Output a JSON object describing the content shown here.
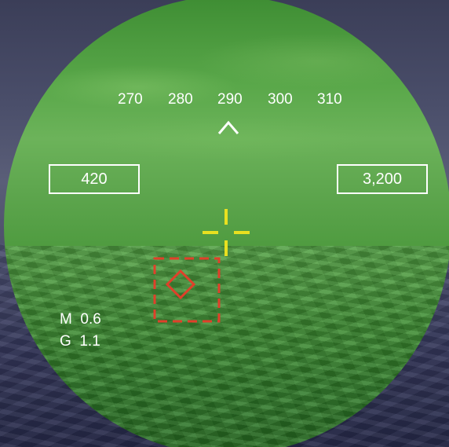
{
  "heading_scale": {
    "ticks": [
      "270",
      "280",
      "290",
      "300",
      "310"
    ],
    "caret_icon": "chevron-up-icon"
  },
  "airspeed": {
    "value": "420"
  },
  "altitude": {
    "value": "3,200"
  },
  "flight_data": {
    "mach_label": "M",
    "mach_value": "0.6",
    "g_label": "G",
    "g_value": "1.1"
  },
  "colors": {
    "hud_text": "#ffffff",
    "boresight_cross": "#e8e020",
    "target_marker": "#e0402a",
    "night_vision_green": "#5aa84a"
  },
  "icons": {
    "boresight": "crosshair-icon",
    "target_designator": "target-box-icon",
    "target_diamond": "diamond-icon"
  }
}
